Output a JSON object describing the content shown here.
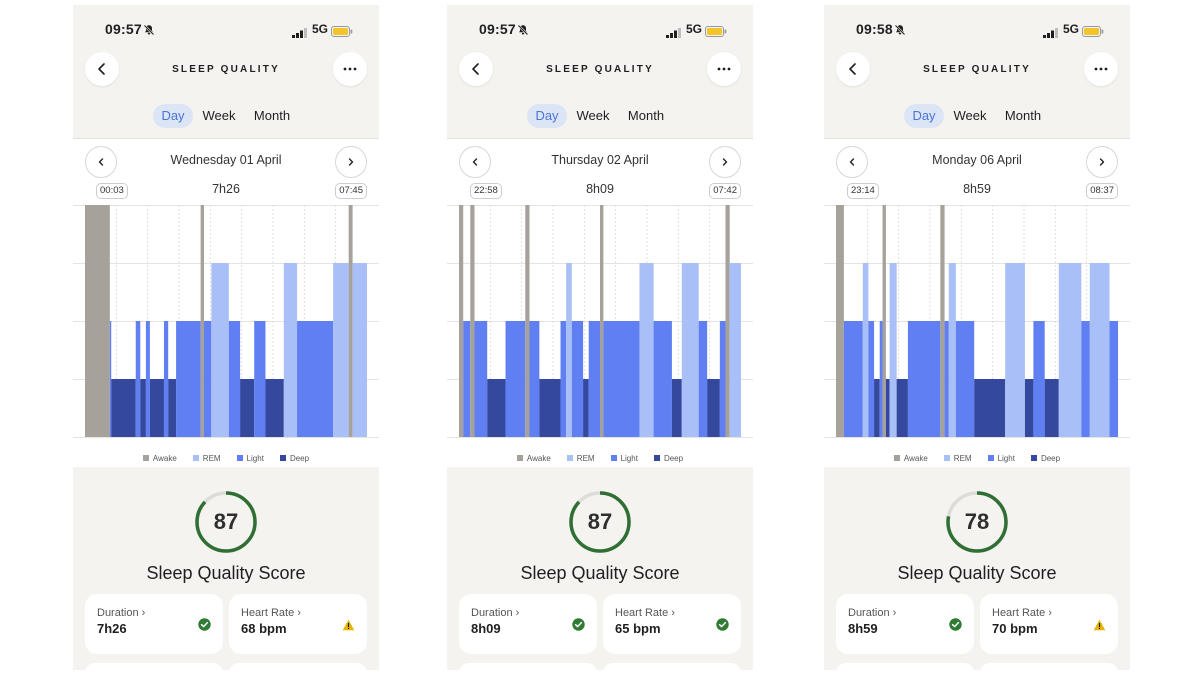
{
  "colors": {
    "awake": "#a6a29b",
    "rem": "#a9bff7",
    "light": "#5f7ff2",
    "deep": "#34489e",
    "score_ring": "#2f6f34",
    "ok": "#2f7a34",
    "warn": "#e8b400",
    "tab_active_bg": "#dce5f6",
    "tab_active_text": "#4a74d8"
  },
  "legend": [
    "Awake",
    "REM",
    "Light",
    "Deep"
  ],
  "phones": [
    {
      "status": {
        "time": "09:57",
        "network": "5G"
      },
      "title": "SLEEP QUALITY",
      "tabs": [
        "Day",
        "Week",
        "Month"
      ],
      "date": "Wednesday 01 April",
      "start": "00:03",
      "end": "07:45",
      "duration": "7h26",
      "score": 87,
      "score_label": "Sleep Quality Score",
      "metrics": [
        {
          "label": "Duration",
          "value": "7h26",
          "status": "ok"
        },
        {
          "label": "Heart Rate",
          "value": "68 bpm",
          "status": "warn"
        }
      ],
      "hypnogram": [
        [
          "awake",
          0.0,
          0.088
        ],
        [
          "light",
          0.088,
          0.093
        ],
        [
          "deep",
          0.093,
          0.18
        ],
        [
          "light",
          0.18,
          0.196
        ],
        [
          "deep",
          0.196,
          0.216
        ],
        [
          "light",
          0.216,
          0.23
        ],
        [
          "deep",
          0.23,
          0.28
        ],
        [
          "light",
          0.28,
          0.295
        ],
        [
          "deep",
          0.295,
          0.323
        ],
        [
          "light",
          0.323,
          0.41
        ],
        [
          "awake",
          0.41,
          0.422
        ],
        [
          "light",
          0.422,
          0.448
        ],
        [
          "rem",
          0.448,
          0.51
        ],
        [
          "light",
          0.51,
          0.55
        ],
        [
          "deep",
          0.55,
          0.6
        ],
        [
          "light",
          0.6,
          0.64
        ],
        [
          "deep",
          0.64,
          0.705
        ],
        [
          "rem",
          0.705,
          0.752
        ],
        [
          "light",
          0.752,
          0.88
        ],
        [
          "rem",
          0.88,
          0.935
        ],
        [
          "awake",
          0.935,
          0.949
        ],
        [
          "rem",
          0.949,
          1.0
        ]
      ]
    },
    {
      "status": {
        "time": "09:57",
        "network": "5G"
      },
      "title": "SLEEP QUALITY",
      "tabs": [
        "Day",
        "Week",
        "Month"
      ],
      "date": "Thursday 02 April",
      "start": "22:58",
      "end": "07:42",
      "duration": "8h09",
      "score": 87,
      "score_label": "Sleep Quality Score",
      "metrics": [
        {
          "label": "Duration",
          "value": "8h09",
          "status": "ok"
        },
        {
          "label": "Heart Rate",
          "value": "65 bpm",
          "status": "ok"
        }
      ],
      "hypnogram": [
        [
          "awake",
          0.0,
          0.015
        ],
        [
          "light",
          0.015,
          0.04
        ],
        [
          "awake",
          0.04,
          0.055
        ],
        [
          "light",
          0.055,
          0.1
        ],
        [
          "deep",
          0.1,
          0.165
        ],
        [
          "light",
          0.165,
          0.235
        ],
        [
          "awake",
          0.235,
          0.25
        ],
        [
          "light",
          0.25,
          0.285
        ],
        [
          "deep",
          0.285,
          0.36
        ],
        [
          "light",
          0.36,
          0.38
        ],
        [
          "rem",
          0.38,
          0.4
        ],
        [
          "light",
          0.4,
          0.44
        ],
        [
          "deep",
          0.44,
          0.46
        ],
        [
          "light",
          0.46,
          0.5
        ],
        [
          "awake",
          0.5,
          0.512
        ],
        [
          "light",
          0.512,
          0.64
        ],
        [
          "rem",
          0.64,
          0.69
        ],
        [
          "light",
          0.69,
          0.755
        ],
        [
          "deep",
          0.755,
          0.79
        ],
        [
          "rem",
          0.79,
          0.85
        ],
        [
          "light",
          0.85,
          0.88
        ],
        [
          "deep",
          0.88,
          0.925
        ],
        [
          "light",
          0.925,
          0.945
        ],
        [
          "awake",
          0.945,
          0.96
        ],
        [
          "rem",
          0.96,
          1.0
        ]
      ]
    },
    {
      "status": {
        "time": "09:58",
        "network": "5G"
      },
      "title": "SLEEP QUALITY",
      "tabs": [
        "Day",
        "Week",
        "Month"
      ],
      "date": "Monday 06 April",
      "start": "23:14",
      "end": "08:37",
      "duration": "8h59",
      "score": 78,
      "score_label": "Sleep Quality Score",
      "metrics": [
        {
          "label": "Duration",
          "value": "8h59",
          "status": "ok"
        },
        {
          "label": "Heart Rate",
          "value": "70 bpm",
          "status": "warn"
        }
      ],
      "hypnogram": [
        [
          "awake",
          0.0,
          0.028
        ],
        [
          "light",
          0.028,
          0.095
        ],
        [
          "rem",
          0.095,
          0.115
        ],
        [
          "light",
          0.115,
          0.135
        ],
        [
          "deep",
          0.135,
          0.155
        ],
        [
          "light",
          0.155,
          0.165
        ],
        [
          "awake",
          0.165,
          0.177
        ],
        [
          "deep",
          0.177,
          0.19
        ],
        [
          "rem",
          0.19,
          0.215
        ],
        [
          "deep",
          0.215,
          0.255
        ],
        [
          "light",
          0.255,
          0.37
        ],
        [
          "awake",
          0.37,
          0.385
        ],
        [
          "light",
          0.385,
          0.4
        ],
        [
          "rem",
          0.4,
          0.425
        ],
        [
          "light",
          0.425,
          0.49
        ],
        [
          "deep",
          0.49,
          0.6
        ],
        [
          "rem",
          0.6,
          0.67
        ],
        [
          "deep",
          0.67,
          0.7
        ],
        [
          "light",
          0.7,
          0.74
        ],
        [
          "deep",
          0.74,
          0.79
        ],
        [
          "rem",
          0.79,
          0.87
        ],
        [
          "light",
          0.87,
          0.9
        ],
        [
          "rem",
          0.9,
          0.97
        ],
        [
          "light",
          0.97,
          1.0
        ]
      ]
    }
  ]
}
